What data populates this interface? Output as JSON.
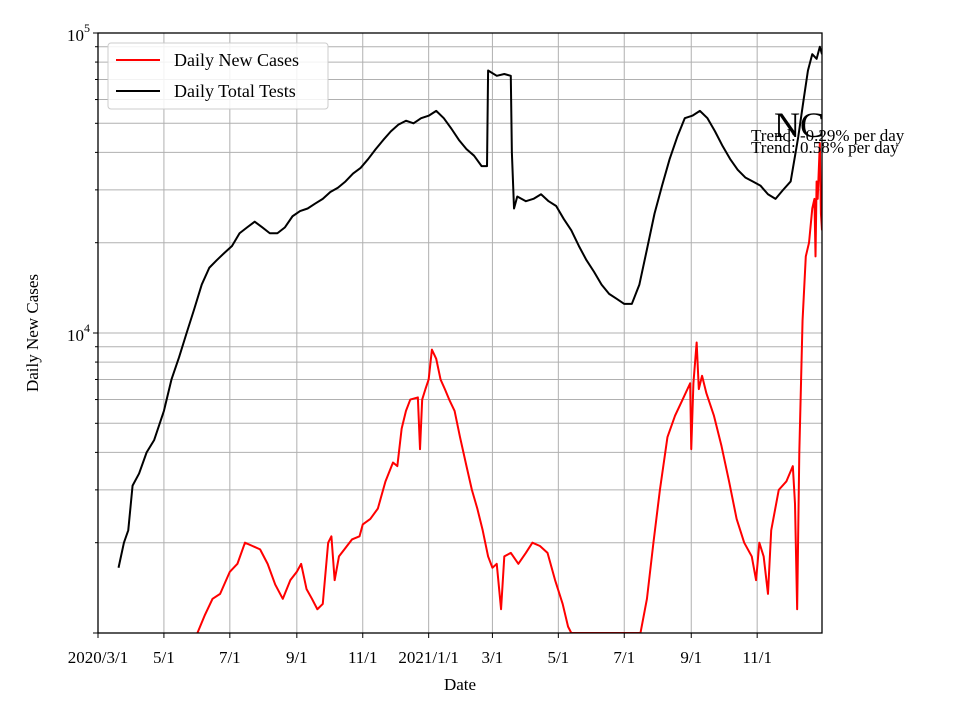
{
  "chart_data": {
    "type": "line",
    "title": "",
    "xlabel": "Date",
    "ylabel": "Daily New Cases",
    "yscale": "log",
    "ylim": [
      1000,
      100000
    ],
    "xlim": [
      "2020-03-01",
      "2021-12-31"
    ],
    "grid": true,
    "legend_position": "top-left",
    "x_ticks": [
      {
        "date": "2020-03-01",
        "label": "2020/3/1"
      },
      {
        "date": "2020-05-01",
        "label": "5/1"
      },
      {
        "date": "2020-07-01",
        "label": "7/1"
      },
      {
        "date": "2020-09-01",
        "label": "9/1"
      },
      {
        "date": "2020-11-01",
        "label": "11/1"
      },
      {
        "date": "2021-01-01",
        "label": "2021/1/1"
      },
      {
        "date": "2021-03-01",
        "label": "3/1"
      },
      {
        "date": "2021-05-01",
        "label": "5/1"
      },
      {
        "date": "2021-07-01",
        "label": "7/1"
      },
      {
        "date": "2021-09-01",
        "label": "9/1"
      },
      {
        "date": "2021-11-01",
        "label": "11/1"
      }
    ],
    "y_ticks": [
      {
        "value": 10000,
        "base": "10",
        "exp": "4"
      },
      {
        "value": 100000,
        "base": "10",
        "exp": "5"
      }
    ],
    "annotations": {
      "state": "NC",
      "trend_1": "Trend: -0.29% per day",
      "trend_2": "Trend: 0.58% per day"
    },
    "series": [
      {
        "name": "Daily New Cases",
        "color": "#ff0000",
        "points": [
          [
            "2020-06-01",
            1000
          ],
          [
            "2020-06-08",
            1150
          ],
          [
            "2020-06-15",
            1300
          ],
          [
            "2020-06-22",
            1350
          ],
          [
            "2020-07-01",
            1600
          ],
          [
            "2020-07-08",
            1700
          ],
          [
            "2020-07-15",
            2000
          ],
          [
            "2020-07-22",
            1950
          ],
          [
            "2020-07-29",
            1900
          ],
          [
            "2020-08-05",
            1700
          ],
          [
            "2020-08-12",
            1450
          ],
          [
            "2020-08-19",
            1300
          ],
          [
            "2020-08-26",
            1500
          ],
          [
            "2020-09-01",
            1600
          ],
          [
            "2020-09-05",
            1700
          ],
          [
            "2020-09-10",
            1400
          ],
          [
            "2020-09-15",
            1300
          ],
          [
            "2020-09-20",
            1200
          ],
          [
            "2020-09-25",
            1250
          ],
          [
            "2020-09-30",
            2000
          ],
          [
            "2020-10-03",
            2100
          ],
          [
            "2020-10-06",
            1500
          ],
          [
            "2020-10-10",
            1800
          ],
          [
            "2020-10-15",
            1900
          ],
          [
            "2020-10-22",
            2050
          ],
          [
            "2020-10-29",
            2100
          ],
          [
            "2020-11-01",
            2300
          ],
          [
            "2020-11-08",
            2400
          ],
          [
            "2020-11-15",
            2600
          ],
          [
            "2020-11-22",
            3200
          ],
          [
            "2020-11-29",
            3700
          ],
          [
            "2020-12-03",
            3600
          ],
          [
            "2020-12-07",
            4800
          ],
          [
            "2020-12-11",
            5500
          ],
          [
            "2020-12-15",
            6000
          ],
          [
            "2020-12-22",
            6100
          ],
          [
            "2020-12-24",
            4100
          ],
          [
            "2020-12-26",
            6000
          ],
          [
            "2020-12-29",
            6500
          ],
          [
            "2021-01-01",
            7000
          ],
          [
            "2021-01-04",
            8800
          ],
          [
            "2021-01-08",
            8200
          ],
          [
            "2021-01-12",
            7000
          ],
          [
            "2021-01-16",
            6500
          ],
          [
            "2021-01-20",
            6000
          ],
          [
            "2021-01-25",
            5500
          ],
          [
            "2021-01-30",
            4500
          ],
          [
            "2021-02-05",
            3600
          ],
          [
            "2021-02-10",
            3000
          ],
          [
            "2021-02-15",
            2600
          ],
          [
            "2021-02-20",
            2200
          ],
          [
            "2021-02-25",
            1800
          ],
          [
            "2021-03-01",
            1650
          ],
          [
            "2021-03-05",
            1700
          ],
          [
            "2021-03-09",
            1200
          ],
          [
            "2021-03-12",
            1800
          ],
          [
            "2021-03-18",
            1850
          ],
          [
            "2021-03-25",
            1700
          ],
          [
            "2021-04-01",
            1850
          ],
          [
            "2021-04-07",
            2000
          ],
          [
            "2021-04-14",
            1950
          ],
          [
            "2021-04-21",
            1850
          ],
          [
            "2021-04-28",
            1500
          ],
          [
            "2021-05-05",
            1250
          ],
          [
            "2021-05-10",
            1050
          ],
          [
            "2021-05-13",
            1000
          ],
          [
            "2021-07-16",
            1000
          ],
          [
            "2021-07-22",
            1300
          ],
          [
            "2021-07-28",
            2000
          ],
          [
            "2021-08-03",
            3000
          ],
          [
            "2021-08-10",
            4500
          ],
          [
            "2021-08-17",
            5300
          ],
          [
            "2021-08-24",
            6000
          ],
          [
            "2021-08-31",
            6800
          ],
          [
            "2021-09-01",
            4100
          ],
          [
            "2021-09-03",
            6800
          ],
          [
            "2021-09-06",
            9300
          ],
          [
            "2021-09-08",
            6500
          ],
          [
            "2021-09-11",
            7200
          ],
          [
            "2021-09-15",
            6300
          ],
          [
            "2021-09-22",
            5300
          ],
          [
            "2021-09-29",
            4200
          ],
          [
            "2021-10-06",
            3200
          ],
          [
            "2021-10-13",
            2400
          ],
          [
            "2021-10-20",
            2000
          ],
          [
            "2021-10-27",
            1800
          ],
          [
            "2021-10-31",
            1500
          ],
          [
            "2021-11-03",
            2000
          ],
          [
            "2021-11-07",
            1800
          ],
          [
            "2021-11-11",
            1350
          ],
          [
            "2021-11-14",
            2200
          ],
          [
            "2021-11-21",
            3000
          ],
          [
            "2021-11-28",
            3200
          ],
          [
            "2021-12-04",
            3600
          ],
          [
            "2021-12-06",
            2700
          ],
          [
            "2021-12-08",
            1200
          ],
          [
            "2021-12-10",
            4000
          ],
          [
            "2021-12-13",
            11000
          ],
          [
            "2021-12-16",
            18000
          ],
          [
            "2021-12-19",
            20000
          ],
          [
            "2021-12-22",
            26000
          ],
          [
            "2021-12-24",
            28000
          ],
          [
            "2021-12-25",
            18000
          ],
          [
            "2021-12-26",
            32000
          ],
          [
            "2021-12-27",
            28000
          ],
          [
            "2021-12-29",
            43000
          ],
          [
            "2021-12-30",
            25000
          ],
          [
            "2021-12-31",
            22000
          ]
        ]
      },
      {
        "name": "Daily Total Tests",
        "color": "#000000",
        "points": [
          [
            "2020-03-20",
            1650
          ],
          [
            "2020-03-25",
            2000
          ],
          [
            "2020-03-29",
            2200
          ],
          [
            "2020-04-02",
            3100
          ],
          [
            "2020-04-08",
            3400
          ],
          [
            "2020-04-15",
            4000
          ],
          [
            "2020-04-22",
            4400
          ],
          [
            "2020-05-01",
            5500
          ],
          [
            "2020-05-08",
            7000
          ],
          [
            "2020-05-15",
            8300
          ],
          [
            "2020-05-22",
            10000
          ],
          [
            "2020-05-29",
            12000
          ],
          [
            "2020-06-05",
            14500
          ],
          [
            "2020-06-12",
            16500
          ],
          [
            "2020-06-19",
            17500
          ],
          [
            "2020-06-26",
            18500
          ],
          [
            "2020-07-03",
            19500
          ],
          [
            "2020-07-10",
            21500
          ],
          [
            "2020-07-17",
            22500
          ],
          [
            "2020-07-24",
            23500
          ],
          [
            "2020-07-31",
            22500
          ],
          [
            "2020-08-07",
            21500
          ],
          [
            "2020-08-14",
            21500
          ],
          [
            "2020-08-21",
            22500
          ],
          [
            "2020-08-28",
            24500
          ],
          [
            "2020-09-04",
            25500
          ],
          [
            "2020-09-11",
            26000
          ],
          [
            "2020-09-18",
            27000
          ],
          [
            "2020-09-25",
            28000
          ],
          [
            "2020-10-02",
            29500
          ],
          [
            "2020-10-09",
            30500
          ],
          [
            "2020-10-16",
            32000
          ],
          [
            "2020-10-23",
            34000
          ],
          [
            "2020-10-30",
            35500
          ],
          [
            "2020-11-06",
            38000
          ],
          [
            "2020-11-13",
            41000
          ],
          [
            "2020-11-20",
            44000
          ],
          [
            "2020-11-27",
            47000
          ],
          [
            "2020-12-04",
            49500
          ],
          [
            "2020-12-11",
            51000
          ],
          [
            "2020-12-18",
            50000
          ],
          [
            "2020-12-25",
            52000
          ],
          [
            "2021-01-01",
            53000
          ],
          [
            "2021-01-08",
            55000
          ],
          [
            "2021-01-15",
            52000
          ],
          [
            "2021-01-22",
            48000
          ],
          [
            "2021-01-29",
            44000
          ],
          [
            "2021-02-05",
            41000
          ],
          [
            "2021-02-12",
            39000
          ],
          [
            "2021-02-19",
            36000
          ],
          [
            "2021-02-24",
            36000
          ],
          [
            "2021-02-25",
            75000
          ],
          [
            "2021-03-05",
            72000
          ],
          [
            "2021-03-12",
            73000
          ],
          [
            "2021-03-18",
            72000
          ],
          [
            "2021-03-19",
            40000
          ],
          [
            "2021-03-21",
            26000
          ],
          [
            "2021-03-24",
            28500
          ],
          [
            "2021-04-01",
            27500
          ],
          [
            "2021-04-08",
            28000
          ],
          [
            "2021-04-15",
            29000
          ],
          [
            "2021-04-22",
            27500
          ],
          [
            "2021-04-29",
            26500
          ],
          [
            "2021-05-06",
            24000
          ],
          [
            "2021-05-13",
            22000
          ],
          [
            "2021-05-20",
            19500
          ],
          [
            "2021-05-27",
            17500
          ],
          [
            "2021-06-03",
            16000
          ],
          [
            "2021-06-10",
            14500
          ],
          [
            "2021-06-17",
            13500
          ],
          [
            "2021-06-24",
            13000
          ],
          [
            "2021-07-01",
            12500
          ],
          [
            "2021-07-08",
            12500
          ],
          [
            "2021-07-15",
            14500
          ],
          [
            "2021-07-22",
            19000
          ],
          [
            "2021-07-29",
            25000
          ],
          [
            "2021-08-05",
            31000
          ],
          [
            "2021-08-12",
            38000
          ],
          [
            "2021-08-19",
            45000
          ],
          [
            "2021-08-26",
            52000
          ],
          [
            "2021-09-02",
            53000
          ],
          [
            "2021-09-09",
            55000
          ],
          [
            "2021-09-16",
            52000
          ],
          [
            "2021-09-23",
            47000
          ],
          [
            "2021-09-30",
            42000
          ],
          [
            "2021-10-07",
            38000
          ],
          [
            "2021-10-14",
            35000
          ],
          [
            "2021-10-21",
            33000
          ],
          [
            "2021-10-28",
            32000
          ],
          [
            "2021-11-04",
            31000
          ],
          [
            "2021-11-11",
            29000
          ],
          [
            "2021-11-18",
            28000
          ],
          [
            "2021-11-25",
            30000
          ],
          [
            "2021-12-02",
            32000
          ],
          [
            "2021-12-09",
            45000
          ],
          [
            "2021-12-14",
            60000
          ],
          [
            "2021-12-18",
            75000
          ],
          [
            "2021-12-22",
            85000
          ],
          [
            "2021-12-26",
            82000
          ],
          [
            "2021-12-29",
            90000
          ],
          [
            "2021-12-31",
            85000
          ]
        ]
      }
    ]
  }
}
